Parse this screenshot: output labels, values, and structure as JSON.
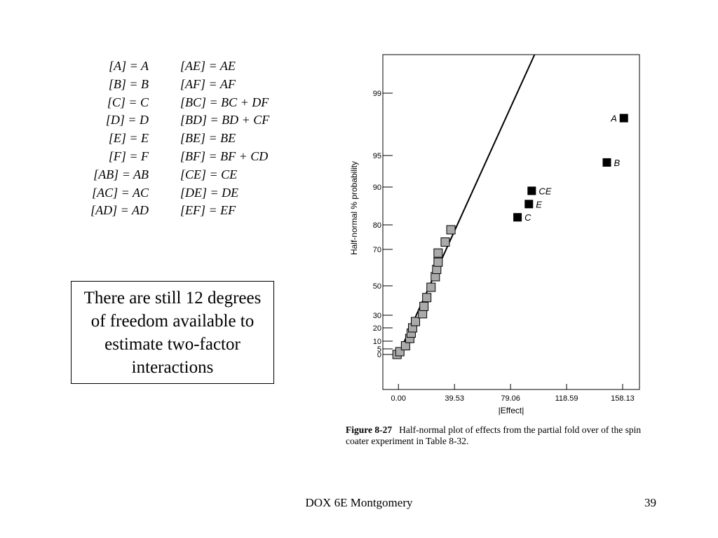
{
  "alias_table": [
    {
      "left": "[A] = A",
      "right": "[AE] = AE"
    },
    {
      "left": "[B] = B",
      "right": "[AF] = AF"
    },
    {
      "left": "[C] = C",
      "right": "[BC] = BC + DF"
    },
    {
      "left": "[D] = D",
      "right": "[BD] = BD + CF"
    },
    {
      "left": "[E] = E",
      "right": "[BE] = BE"
    },
    {
      "left": "[F] = F",
      "right": "[BF] = BF + CD"
    },
    {
      "left": "[AB] = AB",
      "right": "[CE] = CE"
    },
    {
      "left": "[AC] = AC",
      "right": "[DE] = DE"
    },
    {
      "left": "[AD] = AD",
      "right": "[EF] = EF"
    }
  ],
  "note": "There are still 12 degrees of freedom available to estimate two-factor interactions",
  "caption": {
    "label": "Figure 8-27",
    "text": "Half-normal plot of effects from the partial fold over of the spin coater experiment in Table 8-32."
  },
  "footer": {
    "center": "DOX 6E Montgomery",
    "page": "39"
  },
  "chart_data": {
    "type": "scatter",
    "xlabel": "|Effect|",
    "ylabel": "Half-normal % probability",
    "x_ticks": [
      "0.00",
      "39.53",
      "79.06",
      "118.59",
      "158.13"
    ],
    "y_ticks": [
      "0",
      "5",
      "10",
      "20",
      "30",
      "50",
      "70",
      "80",
      "90",
      "95",
      "99"
    ],
    "xlim": [
      -11,
      170
    ],
    "grid": false,
    "series": [
      {
        "marker": "square-gray",
        "x": [
          -1,
          1,
          5,
          8,
          9,
          10,
          12,
          17,
          18,
          20,
          23,
          26,
          27,
          28,
          28,
          33,
          37
        ],
        "y": [
          0,
          2.5,
          7,
          12,
          16,
          20,
          25,
          31,
          36,
          42,
          49,
          55,
          59,
          63,
          68,
          73,
          78
        ]
      },
      {
        "marker": "square-black",
        "labels": [
          "A",
          "B",
          "CE",
          "E",
          "C"
        ],
        "x": [
          159,
          147,
          94,
          92,
          84
        ],
        "y": [
          97.4,
          93.9,
          89,
          85.5,
          82
        ]
      }
    ],
    "reference_line": {
      "x": [
        0,
        96
      ],
      "y": [
        0,
        99.9
      ]
    },
    "colors": {
      "effect_marker": "#aaaaaa",
      "significant_marker": "#000000"
    }
  }
}
